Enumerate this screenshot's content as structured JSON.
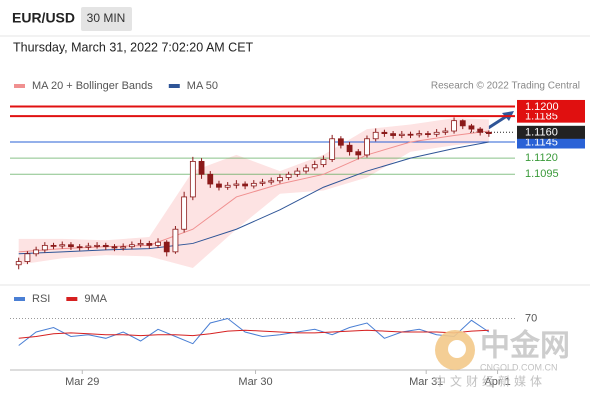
{
  "header": {
    "symbol": "EUR/USD",
    "interval": "30 MIN",
    "timestamp": "Thursday, March 31, 2022 7:02:20 AM CET"
  },
  "chart_data": [
    {
      "type": "candlestick",
      "credit": "Research © 2022 Trading Central",
      "color": "#8b1a1a",
      "x": [
        0,
        1,
        2,
        3,
        4,
        5,
        6,
        7,
        8,
        9,
        10,
        11,
        12,
        13,
        14,
        15,
        16,
        17,
        18,
        19,
        20,
        21,
        22,
        23,
        24,
        25,
        26,
        27,
        28,
        29,
        30,
        31,
        32,
        33,
        34,
        35,
        36,
        37,
        38,
        39,
        40,
        41,
        42,
        43,
        44,
        45,
        46,
        47,
        48,
        49,
        50,
        51,
        52,
        53,
        54
      ],
      "open": [
        1.0955,
        1.096,
        1.0972,
        1.0978,
        1.0985,
        1.0984,
        1.0986,
        1.0983,
        1.0982,
        1.0984,
        1.0985,
        1.0983,
        1.0981,
        1.0983,
        1.0986,
        1.0988,
        1.0985,
        1.099,
        1.0975,
        1.101,
        1.106,
        1.1115,
        1.1095,
        1.108,
        1.1075,
        1.1078,
        1.108,
        1.1077,
        1.1081,
        1.1083,
        1.1085,
        1.109,
        1.1095,
        1.11,
        1.1105,
        1.111,
        1.1118,
        1.115,
        1.114,
        1.113,
        1.1125,
        1.115,
        1.116,
        1.1158,
        1.1155,
        1.1157,
        1.1156,
        1.1158,
        1.1157,
        1.116,
        1.1162,
        1.1178,
        1.117,
        1.1165,
        1.116
      ],
      "high": [
        1.0966,
        1.0976,
        1.0983,
        1.099,
        1.0989,
        1.0991,
        1.099,
        1.0987,
        1.0989,
        1.099,
        1.0989,
        1.0987,
        1.0988,
        1.0991,
        1.0994,
        1.0992,
        1.0996,
        1.0993,
        1.1015,
        1.1068,
        1.1122,
        1.112,
        1.11,
        1.1085,
        1.1083,
        1.1086,
        1.1084,
        1.1086,
        1.1088,
        1.109,
        1.1095,
        1.1099,
        1.1105,
        1.111,
        1.1116,
        1.1124,
        1.1156,
        1.1154,
        1.1145,
        1.1134,
        1.1155,
        1.1166,
        1.1164,
        1.1162,
        1.1162,
        1.1161,
        1.1163,
        1.1162,
        1.1165,
        1.1167,
        1.1183,
        1.118,
        1.1173,
        1.1168,
        1.1163
      ],
      "low": [
        1.0948,
        1.0956,
        1.0968,
        1.0974,
        1.0979,
        1.098,
        1.0978,
        1.0977,
        1.0978,
        1.098,
        1.0978,
        1.0976,
        1.0977,
        1.0979,
        1.0982,
        1.098,
        1.0981,
        1.0968,
        1.0972,
        1.1005,
        1.1055,
        1.1088,
        1.1074,
        1.107,
        1.1071,
        1.1073,
        1.1072,
        1.1073,
        1.1077,
        1.1079,
        1.1081,
        1.1086,
        1.1091,
        1.1096,
        1.1101,
        1.1106,
        1.1114,
        1.1135,
        1.1124,
        1.1118,
        1.1121,
        1.1146,
        1.1153,
        1.115,
        1.1151,
        1.1151,
        1.1152,
        1.1152,
        1.1153,
        1.1156,
        1.1158,
        1.1165,
        1.116,
        1.1155,
        1.1153
      ],
      "close": [
        1.096,
        1.0972,
        1.0978,
        1.0985,
        1.0984,
        1.0986,
        1.0983,
        1.0982,
        1.0984,
        1.0985,
        1.0983,
        1.0981,
        1.0983,
        1.0986,
        1.0988,
        1.0985,
        1.099,
        1.0975,
        1.101,
        1.106,
        1.1115,
        1.1095,
        1.108,
        1.1075,
        1.1078,
        1.108,
        1.1077,
        1.1081,
        1.1083,
        1.1085,
        1.109,
        1.1095,
        1.11,
        1.1105,
        1.111,
        1.1118,
        1.115,
        1.114,
        1.113,
        1.1125,
        1.115,
        1.116,
        1.1158,
        1.1155,
        1.1157,
        1.1156,
        1.1158,
        1.1157,
        1.116,
        1.1162,
        1.1178,
        1.117,
        1.1165,
        1.116,
        1.1158
      ],
      "overlays": [
        {
          "name": "MA 20 + Bollinger Bands",
          "color": "#f09090",
          "band_color": "#fde3e3",
          "x": [
            0,
            5,
            10,
            15,
            20,
            25,
            30,
            35,
            40,
            45,
            50,
            54
          ],
          "values": [
            1.0975,
            1.098,
            1.0983,
            1.0985,
            1.101,
            1.106,
            1.108,
            1.1095,
            1.1125,
            1.1145,
            1.1155,
            1.1162
          ],
          "upper": [
            1.0995,
            1.0995,
            1.0993,
            1.0998,
            1.11,
            1.1125,
            1.11,
            1.1125,
            1.1165,
            1.1172,
            1.1182,
            1.118
          ],
          "lower": [
            1.0955,
            1.0965,
            1.097,
            1.0968,
            1.095,
            1.101,
            1.1065,
            1.107,
            1.109,
            1.113,
            1.114,
            1.1145
          ]
        },
        {
          "name": "MA 50",
          "color": "#2f5597",
          "x": [
            0,
            5,
            10,
            15,
            20,
            25,
            30,
            35,
            40,
            45,
            50,
            54
          ],
          "values": [
            1.0972,
            1.0975,
            1.0978,
            1.098,
            1.0988,
            1.101,
            1.104,
            1.1075,
            1.11,
            1.112,
            1.1135,
            1.1145
          ]
        }
      ],
      "levels": [
        {
          "value": 1.12,
          "label": "1.1200",
          "color": "#e01010",
          "style": "box"
        },
        {
          "value": 1.1185,
          "label": "1.1185",
          "color": "#e01010",
          "style": "box"
        },
        {
          "value": 1.116,
          "label": "1.1160",
          "color": "#222222",
          "style": "dotted"
        },
        {
          "value": 1.1145,
          "label": "1.1145",
          "color": "#2a62d6",
          "style": "box"
        },
        {
          "value": 1.112,
          "label": "1.1120",
          "color": "#3a9a3a",
          "style": "text"
        },
        {
          "value": 1.1095,
          "label": "1.1095",
          "color": "#3a9a3a",
          "style": "text"
        }
      ],
      "xlim": [
        -1,
        57
      ],
      "ylim": [
        1.095,
        1.121
      ]
    },
    {
      "type": "line",
      "series": [
        {
          "name": "RSI",
          "color": "#4a7fd4",
          "x": [
            0,
            2,
            4,
            6,
            8,
            10,
            12,
            14,
            16,
            18,
            20,
            22,
            24,
            26,
            28,
            30,
            32,
            34,
            36,
            38,
            40,
            42,
            44,
            46,
            48,
            50,
            52,
            54
          ],
          "values": [
            40,
            55,
            60,
            50,
            52,
            48,
            55,
            45,
            58,
            50,
            42,
            65,
            70,
            55,
            50,
            52,
            55,
            58,
            52,
            60,
            65,
            48,
            55,
            58,
            52,
            50,
            68,
            55
          ]
        },
        {
          "name": "9MA",
          "color": "#d62020",
          "x": [
            0,
            2,
            4,
            6,
            8,
            10,
            12,
            14,
            16,
            18,
            20,
            22,
            24,
            26,
            28,
            30,
            32,
            34,
            36,
            38,
            40,
            42,
            44,
            46,
            48,
            50,
            52,
            54
          ],
          "values": [
            48,
            50,
            53,
            54,
            53,
            52,
            52,
            51,
            52,
            52,
            51,
            53,
            56,
            57,
            56,
            55,
            54,
            54,
            55,
            56,
            57,
            56,
            55,
            55,
            55,
            54,
            56,
            57
          ]
        }
      ],
      "xlim": [
        -1,
        57
      ],
      "ylim": [
        15,
        85
      ],
      "yticks": [
        70
      ],
      "xticks": [
        {
          "value": 7.3,
          "label": "Mar 29"
        },
        {
          "value": 27.2,
          "label": "Mar 30"
        },
        {
          "value": 46.8,
          "label": "Mar 31"
        },
        {
          "value": 55,
          "label": "Apr 1"
        }
      ]
    }
  ],
  "watermark": {
    "name": "中金网",
    "domain": "CNGOLD.COM.CN",
    "tagline": "中文财经新媒体"
  }
}
